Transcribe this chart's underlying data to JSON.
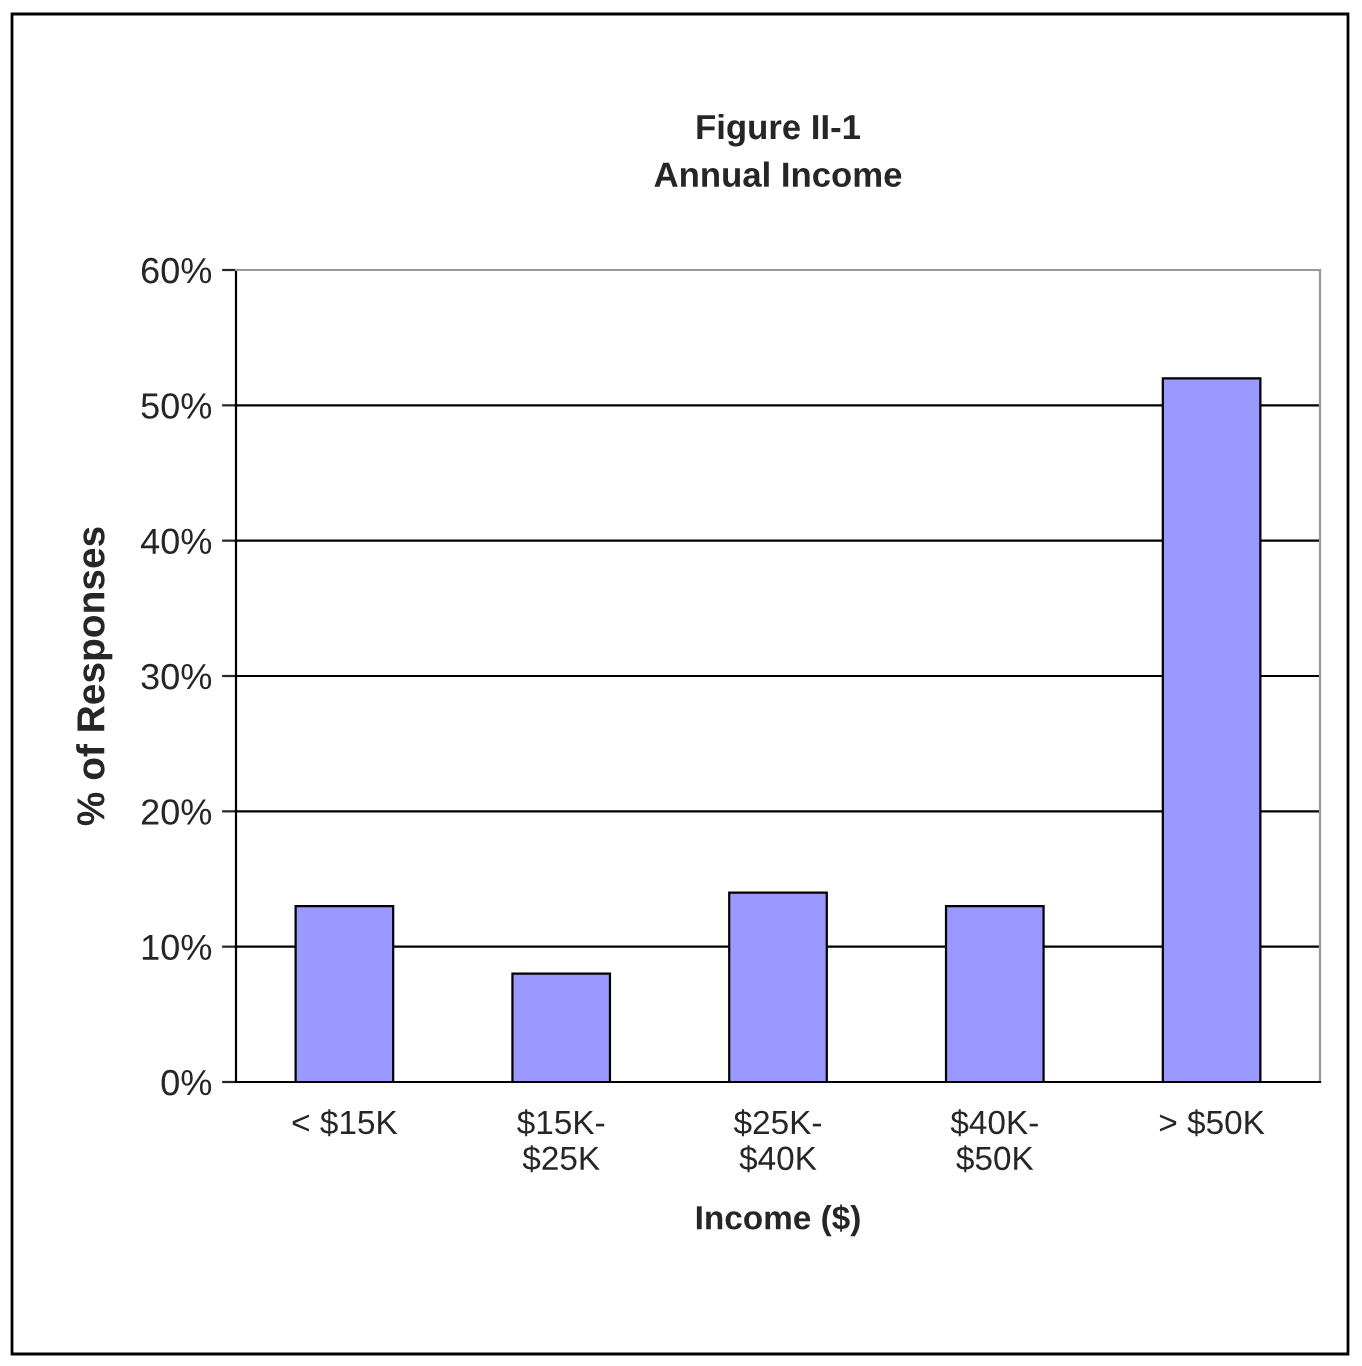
{
  "chart_data": {
    "type": "bar",
    "title": "Figure II-1\nAnnual Income",
    "xlabel": "Income ($)",
    "ylabel": "% of Responses",
    "categories": [
      "< $15K",
      "$15K-\n$25K",
      "$25K-\n$40K",
      "$40K-\n$50K",
      "> $50K"
    ],
    "values": [
      13,
      8,
      14,
      13,
      52
    ],
    "color": "#9999ff",
    "ylim": [
      0,
      60
    ],
    "yticks": [
      {
        "value": 0,
        "label": "0%"
      },
      {
        "value": 10,
        "label": "10%"
      },
      {
        "value": 20,
        "label": "20%"
      },
      {
        "value": 30,
        "label": "30%"
      },
      {
        "value": 40,
        "label": "40%"
      },
      {
        "value": 50,
        "label": "50%"
      },
      {
        "value": 60,
        "label": "60%"
      }
    ],
    "grid": "y",
    "legend": false
  }
}
